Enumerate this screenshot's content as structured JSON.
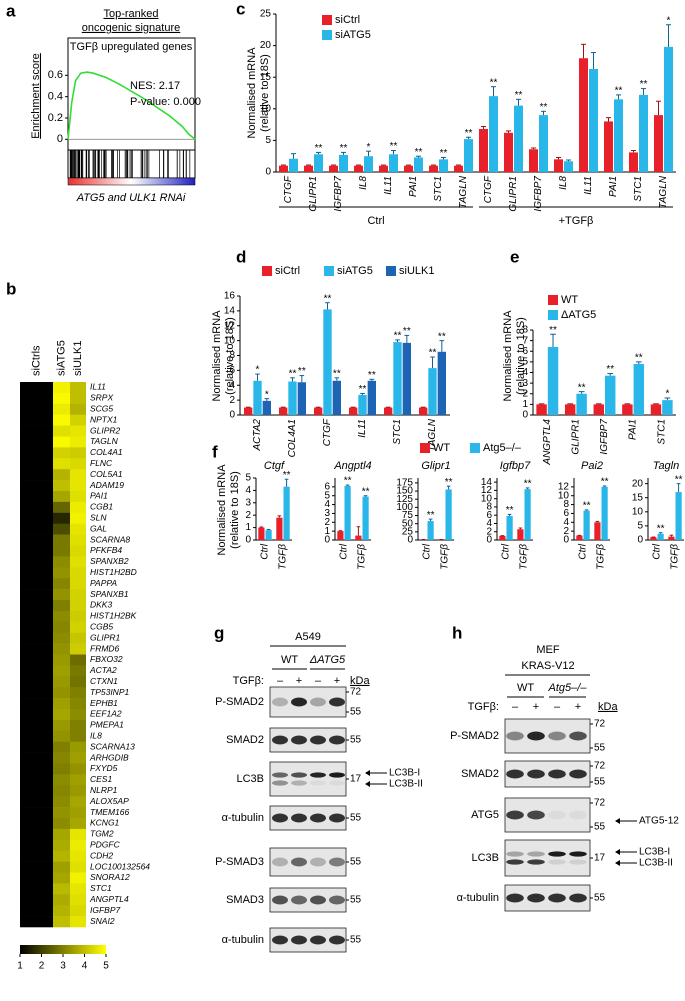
{
  "chart_data": [
    {
      "type": "line",
      "label": "a",
      "title": [
        "Top-ranked",
        "oncogenic signature"
      ],
      "subtitle": "TGFβ upregulated genes",
      "ylabel": "Enrichment score",
      "annotations": [
        "NES: 2.17",
        "P-value: 0.000"
      ],
      "xlabel": "ATG5 and ULK1 RNAi",
      "x": [
        0,
        3,
        6,
        10,
        15,
        20,
        30,
        40,
        50,
        60,
        70,
        80,
        90,
        95,
        100
      ],
      "values": [
        0,
        0.35,
        0.55,
        0.62,
        0.63,
        0.62,
        0.58,
        0.52,
        0.45,
        0.38,
        0.3,
        0.22,
        0.12,
        0.05,
        0
      ],
      "color": "#33dd33",
      "xlim": [
        0,
        100
      ],
      "ylim": [
        -0.1,
        0.95
      ],
      "yticks": [
        0,
        0.2,
        0.4,
        0.6
      ]
    },
    {
      "type": "heatmap",
      "label": "b",
      "columns": [
        "siCtrls",
        "siATG5",
        "siULK1"
      ],
      "rows": [
        "IL11",
        "SRPX",
        "SCG5",
        "NPTX1",
        "GLIPR2",
        "TAGLN",
        "COL4A1",
        "FLNC",
        "COL5A1",
        "ADAM19",
        "PAI1",
        "CGB1",
        "SLN",
        "GAL",
        "SCARNA8",
        "PFKFB4",
        "SPANXB2",
        "HIST1H2BD",
        "PAPPA",
        "SPANXB1",
        "DKK3",
        "HIST1H2BK",
        "CGB5",
        "GLIPR1",
        "FRMD6",
        "FBXO32",
        "ACTA2",
        "CTXN1",
        "TP53INP1",
        "EPHB1",
        "EEF1A2",
        "PMEPA1",
        "IL8",
        "SCARNA13",
        "ARHGDIB",
        "FXYD5",
        "CES1",
        "NLRP1",
        "ALOX5AP",
        "TMEM166",
        "KCNG1",
        "TGM2",
        "PDGFC",
        "CDH2",
        "LOC100132564",
        "SNORA12",
        "STC1",
        "ANGPTL4",
        "IGFBP7",
        "SNAI2"
      ],
      "row_colors": [
        "#1aa7dc",
        "#000000",
        "#000000",
        "#000000",
        "#1aa7dc",
        "#1aa7dc",
        "#1aa7dc",
        "#000000",
        "#1aa7dc",
        "#1aa7dc",
        "#1aa7dc",
        "#000000",
        "#000000",
        "#000000",
        "#000000",
        "#000000",
        "#000000",
        "#000000",
        "#000000",
        "#000000",
        "#000000",
        "#000000",
        "#000000",
        "#1aa7dc",
        "#000000",
        "#1aa7dc",
        "#1aa7dc",
        "#000000",
        "#000000",
        "#000000",
        "#000000",
        "#1aa7dc",
        "#1aa7dc",
        "#000000",
        "#000000",
        "#000000",
        "#000000",
        "#000000",
        "#1aa7dc",
        "#000000",
        "#000000",
        "#1aa7dc",
        "#1aa7dc",
        "#1aa7dc",
        "#000000",
        "#000000",
        "#1aa7dc",
        "#1aa7dc",
        "#1aa7dc",
        "#1aa7dc"
      ],
      "values": [
        [
          1,
          4.8,
          4.0
        ],
        [
          1,
          4.9,
          4.0
        ],
        [
          1,
          4.7,
          3.8
        ],
        [
          1,
          4.9,
          4.3
        ],
        [
          1,
          4.5,
          4.6
        ],
        [
          1,
          4.9,
          4.7
        ],
        [
          1,
          4.3,
          4.2
        ],
        [
          1,
          4.5,
          4.4
        ],
        [
          1,
          3.8,
          4.6
        ],
        [
          1,
          4.0,
          4.6
        ],
        [
          1,
          3.6,
          4.5
        ],
        [
          1,
          2.6,
          4.7
        ],
        [
          1,
          1.6,
          4.8
        ],
        [
          1,
          2.2,
          4.6
        ],
        [
          1,
          2.9,
          4.5
        ],
        [
          1,
          2.9,
          4.4
        ],
        [
          1,
          3.2,
          4.5
        ],
        [
          1,
          3.3,
          4.4
        ],
        [
          1,
          3.1,
          4.4
        ],
        [
          1,
          3.3,
          4.3
        ],
        [
          1,
          3.0,
          4.3
        ],
        [
          1,
          3.2,
          4.2
        ],
        [
          1,
          3.1,
          4.3
        ],
        [
          1,
          3.2,
          4.1
        ],
        [
          1,
          3.3,
          4.2
        ],
        [
          1,
          3.4,
          2.7
        ],
        [
          1,
          3.5,
          2.9
        ],
        [
          1,
          3.4,
          2.8
        ],
        [
          1,
          3.3,
          3.0
        ],
        [
          1,
          3.5,
          3.1
        ],
        [
          1,
          3.6,
          3.2
        ],
        [
          1,
          3.4,
          3.0
        ],
        [
          1,
          3.3,
          3.0
        ],
        [
          1,
          3.0,
          3.4
        ],
        [
          1,
          3.1,
          3.5
        ],
        [
          1,
          3.0,
          3.3
        ],
        [
          1,
          3.2,
          3.5
        ],
        [
          1,
          3.1,
          3.4
        ],
        [
          1,
          3.2,
          3.6
        ],
        [
          1,
          3.3,
          3.5
        ],
        [
          1,
          3.2,
          3.6
        ],
        [
          1,
          3.6,
          4.6
        ],
        [
          1,
          3.7,
          4.7
        ],
        [
          1,
          3.8,
          4.6
        ],
        [
          1,
          3.5,
          4.5
        ],
        [
          1,
          3.6,
          4.8
        ],
        [
          1,
          3.9,
          4.6
        ],
        [
          1,
          3.7,
          4.5
        ],
        [
          1,
          3.8,
          4.4
        ],
        [
          1,
          4.0,
          4.6
        ]
      ],
      "zlim": [
        1,
        5
      ],
      "colorbar_ticks": [
        1,
        2,
        3,
        4,
        5
      ]
    },
    {
      "type": "bar",
      "label": "c",
      "ylabel": [
        "Normalised mRNA",
        "(relative to 18S)"
      ],
      "categories": [
        "CTGF",
        "GLIPR1",
        "IGFBP7",
        "IL8",
        "IL11",
        "PAI1",
        "STC1",
        "TAGLN",
        "CTGF",
        "GLIPR1",
        "IGFBP7",
        "IL8",
        "IL11",
        "PAI1",
        "STC1",
        "TAGLN"
      ],
      "groups": [
        "Ctrl",
        "+TGFβ"
      ],
      "series": [
        {
          "name": "siCtrl",
          "color": "#e8202a",
          "values": [
            1,
            1,
            1,
            1,
            1,
            1,
            1,
            1,
            6.8,
            6.2,
            3.6,
            2.0,
            18,
            8,
            3.1,
            9
          ],
          "errors": [
            0.1,
            0.1,
            0.1,
            0.1,
            0.1,
            0.1,
            0.1,
            0.1,
            0.4,
            0.3,
            0.2,
            0.3,
            2.2,
            0.6,
            0.3,
            2.2
          ]
        },
        {
          "name": "siATG5",
          "color": "#29b6e8",
          "values": [
            2.1,
            2.8,
            2.7,
            2.5,
            2.8,
            2.3,
            2.0,
            5.2,
            12,
            10.5,
            9,
            1.7,
            16.3,
            11.5,
            12.2,
            19.8
          ],
          "errors": [
            0.8,
            0.3,
            0.4,
            0.8,
            0.6,
            0.2,
            0.3,
            0.3,
            1.5,
            1.0,
            0.6,
            0.2,
            2.6,
            0.7,
            1.0,
            3.5
          ],
          "significance": [
            null,
            "**",
            "**",
            "*",
            "**",
            "**",
            "**",
            "**",
            "**",
            "**",
            "**",
            null,
            null,
            "**",
            "**",
            "*"
          ]
        }
      ],
      "ylim": [
        0,
        25
      ],
      "yticks": [
        0,
        5,
        10,
        15,
        20,
        25
      ]
    },
    {
      "type": "bar",
      "label": "d",
      "ylabel": [
        "Normalised mRNA",
        "(relative to 18S)"
      ],
      "categories": [
        "ACTA2",
        "COL4A1",
        "CTGF",
        "IL11",
        "STC1",
        "TAGLN"
      ],
      "series": [
        {
          "name": "siCtrl",
          "color": "#e8202a",
          "values": [
            1,
            1,
            1,
            1,
            1,
            1
          ],
          "errors": [
            0.05,
            0.05,
            0.05,
            0.05,
            0.05,
            0.05
          ]
        },
        {
          "name": "siATG5",
          "color": "#29b6e8",
          "values": [
            4.6,
            4.5,
            14.2,
            2.7,
            9.8,
            6.3
          ],
          "errors": [
            0.9,
            0.5,
            0.9,
            0.2,
            0.3,
            1.5
          ],
          "significance": [
            "*",
            "**",
            "**",
            "**",
            "**",
            "**"
          ]
        },
        {
          "name": "siULK1",
          "color": "#1e64b4",
          "values": [
            1.9,
            4.4,
            4.6,
            4.6,
            9.7,
            8.5
          ],
          "errors": [
            0.3,
            0.9,
            0.4,
            0.2,
            1.0,
            1.5
          ],
          "significance": [
            "*",
            "**",
            "**",
            "**",
            "**",
            "**"
          ]
        }
      ],
      "ylim": [
        0,
        16
      ],
      "yticks": [
        0,
        2,
        4,
        6,
        8,
        10,
        12,
        14,
        16
      ]
    },
    {
      "type": "bar",
      "label": "e",
      "ylabel": [
        "Normalised mRNA",
        "(relative to 18S)"
      ],
      "categories": [
        "ANGPTL4",
        "GLIPR1",
        "IGFBP7",
        "PAI1",
        "STC1"
      ],
      "series": [
        {
          "name": "WT",
          "color": "#e8202a",
          "values": [
            1,
            1,
            1,
            1,
            1
          ],
          "errors": [
            0.05,
            0.05,
            0.05,
            0.05,
            0.05
          ]
        },
        {
          "name": "ΔATG5",
          "color": "#29b6e8",
          "values": [
            6.4,
            2.0,
            3.7,
            4.8,
            1.4
          ],
          "errors": [
            1.2,
            0.2,
            0.2,
            0.2,
            0.2
          ],
          "significance": [
            "**",
            "**",
            "**",
            "**",
            "*"
          ]
        }
      ],
      "ylim": [
        0,
        8
      ],
      "yticks": [
        0,
        1,
        2,
        3,
        4,
        5,
        6,
        7,
        8
      ]
    },
    {
      "type": "bar-panels",
      "label": "f",
      "ylabel": [
        "Normalised mRNA",
        "(relative to 18S)"
      ],
      "series": [
        {
          "name": "WT",
          "color": "#e8202a"
        },
        {
          "name": "Atg5–/–",
          "color": "#29b6e8"
        }
      ],
      "panels": [
        {
          "title": "Ctgf",
          "categories": [
            "Ctrl",
            "TGFβ"
          ],
          "ylim": [
            0,
            5
          ],
          "yticks": [
            0,
            1,
            2,
            3,
            4,
            5
          ],
          "values": [
            [
              1,
              1.8
            ],
            [
              0.8,
              4.3
            ]
          ],
          "errors": [
            [
              0.05,
              0.15
            ],
            [
              0.05,
              0.6
            ]
          ],
          "significance": [
            [
              null,
              null
            ],
            [
              null,
              "**"
            ]
          ]
        },
        {
          "title": "Angptl4",
          "categories": [
            "Ctrl",
            "TGFβ"
          ],
          "ylim": [
            0,
            7
          ],
          "yticks": [
            0,
            1,
            2,
            3,
            4,
            5,
            6
          ],
          "values": [
            [
              1,
              0.5
            ],
            [
              6.1,
              4.9
            ]
          ],
          "errors": [
            [
              0.05,
              1.0
            ],
            [
              0.1,
              0.1
            ]
          ],
          "significance": [
            [
              null,
              null
            ],
            [
              "**",
              "**"
            ]
          ]
        },
        {
          "title": "Glipr1",
          "categories": [
            "Ctrl",
            "TGFβ"
          ],
          "ylim": [
            0,
            190
          ],
          "yticks": [
            0,
            25,
            50,
            75,
            100,
            125,
            150,
            175
          ],
          "values": [
            [
              1,
              1
            ],
            [
              58,
              155
            ]
          ],
          "errors": [
            [
              0.5,
              0.5
            ],
            [
              6,
              10
            ]
          ],
          "significance": [
            [
              null,
              null
            ],
            [
              "**",
              "**"
            ]
          ]
        },
        {
          "title": "Igfbp7",
          "categories": [
            "Ctrl",
            "TGFβ"
          ],
          "ylim": [
            0,
            15
          ],
          "yticks": [
            0,
            2,
            4,
            6,
            8,
            10,
            12,
            14
          ],
          "values": [
            [
              1,
              2.6
            ],
            [
              5.8,
              12.3
            ]
          ],
          "errors": [
            [
              0.05,
              0.3
            ],
            [
              0.4,
              0.3
            ]
          ],
          "significance": [
            [
              null,
              null
            ],
            [
              "**",
              "**"
            ]
          ]
        },
        {
          "title": "Pai2",
          "categories": [
            "Ctrl",
            "TGFβ"
          ],
          "ylim": [
            0,
            14
          ],
          "yticks": [
            0,
            2,
            4,
            6,
            8,
            10,
            12
          ],
          "values": [
            [
              1,
              4
            ],
            [
              6.6,
              12
            ]
          ],
          "errors": [
            [
              0.05,
              0.2
            ],
            [
              0.2,
              0.2
            ]
          ],
          "significance": [
            [
              null,
              null
            ],
            [
              "**",
              "**"
            ]
          ]
        },
        {
          "title": "Tagln",
          "categories": [
            "Ctrl",
            "TGFβ"
          ],
          "ylim": [
            0,
            22
          ],
          "yticks": [
            0,
            5,
            10,
            15,
            20
          ],
          "values": [
            [
              1,
              1.2
            ],
            [
              2.2,
              17
            ]
          ],
          "errors": [
            [
              0.05,
              0.5
            ],
            [
              0.4,
              3
            ]
          ],
          "significance": [
            [
              null,
              null
            ],
            [
              "**",
              "**"
            ]
          ]
        }
      ]
    }
  ],
  "panel_g": {
    "label": "g",
    "cell_line": [
      "A549"
    ],
    "groups": [
      "WT",
      "ΔATG5"
    ],
    "treatment_label": "TGFβ:",
    "treatment": [
      "–",
      "+",
      "–",
      "+"
    ],
    "kda_header": "kDa",
    "rows": [
      {
        "name": "P-SMAD2",
        "kda": [
          "72",
          "55"
        ]
      },
      {
        "name": "SMAD2",
        "kda": [
          "55"
        ]
      },
      {
        "name": "LC3B",
        "kda": [
          "17"
        ],
        "bands": [
          "LC3B-I",
          "LC3B-II"
        ]
      },
      {
        "name": "α-tubulin",
        "kda": [
          "55"
        ]
      },
      {
        "name": "P-SMAD3",
        "kda": [
          "55"
        ]
      },
      {
        "name": "SMAD3",
        "kda": [
          "55"
        ]
      },
      {
        "name": "α-tubulin",
        "kda": [
          "55"
        ]
      }
    ]
  },
  "panel_h": {
    "label": "h",
    "cell_line": [
      "MEF",
      "KRAS-V12"
    ],
    "groups": [
      "WT",
      "Atg5–/–"
    ],
    "treatment_label": "TGFβ:",
    "treatment": [
      "–",
      "+",
      "–",
      "+"
    ],
    "kda_header": "kDa",
    "rows": [
      {
        "name": "P-SMAD2",
        "kda": [
          "72",
          "55"
        ]
      },
      {
        "name": "SMAD2",
        "kda": [
          "72",
          "55"
        ]
      },
      {
        "name": "ATG5",
        "kda": [
          "72",
          "55"
        ],
        "bands": [
          "ATG5-12"
        ]
      },
      {
        "name": "LC3B",
        "kda": [
          "17"
        ],
        "bands": [
          "LC3B-I",
          "LC3B-II"
        ]
      },
      {
        "name": "α-tubulin",
        "kda": [
          "55"
        ]
      }
    ]
  }
}
